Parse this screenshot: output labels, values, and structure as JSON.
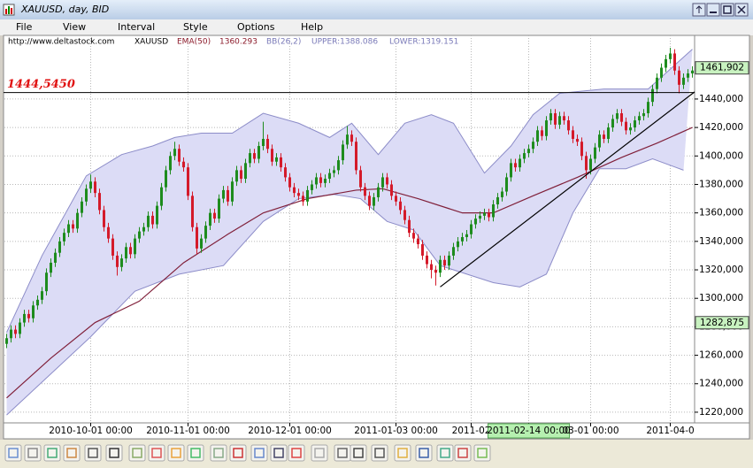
{
  "window": {
    "title": "XAUUSD, day, BID",
    "menu": [
      "File",
      "View",
      "Interval",
      "Style",
      "Options",
      "Help"
    ],
    "header": {
      "source": "http://www.deltastock.com",
      "symbol": "XAUUSD",
      "ema_label": "EMA(50)",
      "ema_value": 1360.293,
      "bb_label": "BB(26,2)",
      "upper": "UPPER:1388.086",
      "lower": "LOWER:1319.151"
    }
  },
  "chart_data": {
    "type": "candlestick",
    "xlim": [
      -0.5,
      155.5
    ],
    "ylim": [
      1212.5,
      1484.7
    ],
    "grid": true,
    "up_color": "#1e8c1e",
    "down_color": "#d41a2a",
    "xticks": [
      {
        "value": 19,
        "label": "2010-10-01 00:00"
      },
      {
        "value": 41,
        "label": "2010-11-01 00:00"
      },
      {
        "value": 64,
        "label": "2010-12-01 00:00"
      },
      {
        "value": 88,
        "label": "2011-01-03 00:00"
      },
      {
        "value": 105,
        "label": "2011-02"
      },
      {
        "value": 118,
        "label": "2011-02-14 00:00"
      },
      {
        "value": 132,
        "label": "03-01 00:00"
      },
      {
        "value": 150,
        "label": "2011-04-0"
      }
    ],
    "highlight_xtick": 5,
    "yticks": [
      {
        "value": 1220,
        "label": "1220,000"
      },
      {
        "value": 1240,
        "label": "1240,000"
      },
      {
        "value": 1260,
        "label": "1260,000"
      },
      {
        "value": 1280,
        "label": "1280,000"
      },
      {
        "value": 1300,
        "label": "1300,000"
      },
      {
        "value": 1320,
        "label": "1320,000"
      },
      {
        "value": 1340,
        "label": "1340,000"
      },
      {
        "value": 1360,
        "label": "1360,000"
      },
      {
        "value": 1380,
        "label": "1380,000"
      },
      {
        "value": 1400,
        "label": "1400,000"
      },
      {
        "value": 1420,
        "label": "1420,000"
      },
      {
        "value": 1440,
        "label": "1440,000"
      }
    ],
    "open": [
      1268,
      1272,
      1278,
      1275,
      1283,
      1289,
      1286,
      1295,
      1299,
      1305,
      1318,
      1325,
      1332,
      1340,
      1346,
      1352,
      1349,
      1360,
      1368,
      1377,
      1382,
      1374,
      1362,
      1350,
      1342,
      1330,
      1322,
      1328,
      1336,
      1331,
      1342,
      1347,
      1350,
      1358,
      1352,
      1365,
      1378,
      1390,
      1400,
      1405,
      1396,
      1392,
      1372,
      1350,
      1335,
      1342,
      1351,
      1360,
      1356,
      1370,
      1376,
      1368,
      1382,
      1390,
      1384,
      1395,
      1402,
      1398,
      1407,
      1412,
      1405,
      1396,
      1399,
      1392,
      1385,
      1378,
      1374,
      1372,
      1368,
      1376,
      1380,
      1385,
      1381,
      1384,
      1388,
      1390,
      1397,
      1408,
      1415,
      1410,
      1390,
      1378,
      1372,
      1365,
      1371,
      1378,
      1385,
      1380,
      1372,
      1368,
      1362,
      1355,
      1346,
      1342,
      1338,
      1330,
      1324,
      1320,
      1318,
      1327,
      1323,
      1330,
      1336,
      1340,
      1343,
      1345,
      1352,
      1356,
      1358,
      1360,
      1357,
      1366,
      1371,
      1375,
      1385,
      1395,
      1392,
      1398,
      1402,
      1405,
      1410,
      1418,
      1414,
      1425,
      1430,
      1422,
      1428,
      1425,
      1418,
      1412,
      1410,
      1400,
      1390,
      1398,
      1406,
      1415,
      1412,
      1420,
      1426,
      1430,
      1424,
      1418,
      1420,
      1425,
      1428,
      1430,
      1438,
      1447,
      1455,
      1462,
      1468,
      1472,
      1460,
      1450,
      1455,
      1458
    ],
    "high": [
      1275,
      1281,
      1281,
      1286,
      1292,
      1292,
      1298,
      1302,
      1308,
      1321,
      1328,
      1335,
      1343,
      1349,
      1355,
      1355,
      1363,
      1371,
      1380,
      1387,
      1385,
      1377,
      1365,
      1353,
      1345,
      1333,
      1331,
      1339,
      1339,
      1345,
      1350,
      1353,
      1361,
      1361,
      1368,
      1381,
      1393,
      1403,
      1410,
      1408,
      1399,
      1395,
      1375,
      1353,
      1345,
      1354,
      1363,
      1363,
      1373,
      1379,
      1379,
      1385,
      1393,
      1393,
      1398,
      1405,
      1405,
      1410,
      1424,
      1415,
      1408,
      1402,
      1402,
      1395,
      1388,
      1381,
      1377,
      1375,
      1379,
      1383,
      1388,
      1388,
      1387,
      1391,
      1393,
      1400,
      1411,
      1421,
      1418,
      1413,
      1393,
      1381,
      1375,
      1374,
      1381,
      1388,
      1388,
      1383,
      1375,
      1371,
      1365,
      1358,
      1349,
      1345,
      1341,
      1333,
      1327,
      1323,
      1330,
      1330,
      1333,
      1339,
      1343,
      1346,
      1348,
      1355,
      1359,
      1361,
      1363,
      1363,
      1369,
      1374,
      1378,
      1388,
      1398,
      1398,
      1401,
      1405,
      1408,
      1413,
      1421,
      1421,
      1428,
      1433,
      1433,
      1431,
      1431,
      1428,
      1421,
      1415,
      1413,
      1403,
      1401,
      1409,
      1418,
      1418,
      1423,
      1429,
      1433,
      1433,
      1427,
      1423,
      1428,
      1431,
      1433,
      1441,
      1450,
      1458,
      1465,
      1471,
      1476,
      1475,
      1463,
      1458,
      1461,
      1463
    ],
    "low": [
      1265,
      1269,
      1272,
      1272,
      1280,
      1283,
      1283,
      1292,
      1296,
      1302,
      1315,
      1322,
      1329,
      1337,
      1343,
      1346,
      1346,
      1357,
      1365,
      1374,
      1371,
      1359,
      1347,
      1339,
      1327,
      1316,
      1319,
      1325,
      1328,
      1328,
      1339,
      1344,
      1347,
      1349,
      1349,
      1362,
      1375,
      1387,
      1397,
      1393,
      1389,
      1369,
      1347,
      1331,
      1332,
      1339,
      1348,
      1353,
      1353,
      1367,
      1365,
      1365,
      1379,
      1381,
      1381,
      1392,
      1395,
      1395,
      1404,
      1402,
      1393,
      1393,
      1389,
      1382,
      1375,
      1371,
      1369,
      1365,
      1365,
      1373,
      1377,
      1378,
      1378,
      1381,
      1385,
      1387,
      1394,
      1405,
      1407,
      1387,
      1375,
      1369,
      1362,
      1362,
      1368,
      1375,
      1377,
      1369,
      1365,
      1359,
      1352,
      1343,
      1339,
      1335,
      1327,
      1321,
      1314,
      1309,
      1315,
      1320,
      1320,
      1327,
      1333,
      1337,
      1340,
      1342,
      1349,
      1353,
      1355,
      1354,
      1354,
      1363,
      1368,
      1372,
      1382,
      1389,
      1389,
      1395,
      1399,
      1402,
      1407,
      1411,
      1411,
      1422,
      1419,
      1419,
      1422,
      1415,
      1409,
      1407,
      1397,
      1384,
      1387,
      1395,
      1403,
      1409,
      1409,
      1417,
      1423,
      1421,
      1415,
      1415,
      1417,
      1422,
      1425,
      1427,
      1435,
      1444,
      1452,
      1459,
      1465,
      1457,
      1444,
      1447,
      1452,
      1455
    ],
    "close": [
      1272,
      1278,
      1275,
      1283,
      1289,
      1286,
      1295,
      1299,
      1305,
      1318,
      1325,
      1332,
      1340,
      1346,
      1352,
      1349,
      1360,
      1368,
      1377,
      1382,
      1374,
      1362,
      1350,
      1342,
      1330,
      1322,
      1328,
      1336,
      1331,
      1342,
      1347,
      1350,
      1358,
      1352,
      1365,
      1378,
      1390,
      1400,
      1405,
      1396,
      1392,
      1372,
      1350,
      1335,
      1342,
      1351,
      1360,
      1356,
      1370,
      1376,
      1368,
      1382,
      1390,
      1384,
      1395,
      1402,
      1398,
      1407,
      1412,
      1405,
      1396,
      1399,
      1392,
      1385,
      1378,
      1374,
      1372,
      1368,
      1376,
      1380,
      1385,
      1381,
      1384,
      1388,
      1390,
      1397,
      1408,
      1415,
      1410,
      1390,
      1378,
      1372,
      1365,
      1371,
      1378,
      1385,
      1380,
      1372,
      1368,
      1362,
      1355,
      1346,
      1342,
      1338,
      1330,
      1324,
      1320,
      1318,
      1327,
      1323,
      1330,
      1336,
      1340,
      1343,
      1345,
      1352,
      1356,
      1358,
      1360,
      1357,
      1366,
      1371,
      1375,
      1385,
      1395,
      1392,
      1398,
      1402,
      1405,
      1410,
      1418,
      1414,
      1425,
      1430,
      1422,
      1428,
      1425,
      1418,
      1412,
      1410,
      1400,
      1390,
      1398,
      1406,
      1415,
      1412,
      1420,
      1426,
      1430,
      1424,
      1418,
      1420,
      1425,
      1428,
      1430,
      1438,
      1447,
      1455,
      1462,
      1468,
      1472,
      1460,
      1450,
      1455,
      1458,
      1460
    ],
    "bands": {
      "fill": "#dcdcf6",
      "color": "#8c8cc8",
      "upper": {
        "x": [
          0,
          8,
          18,
          26,
          33,
          38,
          44,
          51,
          58,
          66,
          73,
          78,
          84,
          90,
          96,
          101,
          108,
          114,
          119,
          125,
          135,
          145,
          155
        ],
        "values": [
          1276,
          1330,
          1386,
          1401,
          1407,
          1413,
          1416,
          1416,
          1430,
          1423,
          1413,
          1423,
          1401,
          1423,
          1429,
          1423,
          1388,
          1407,
          1429,
          1444,
          1447,
          1447,
          1475
        ]
      },
      "lower": {
        "x": [
          0,
          19,
          29,
          39,
          49,
          58,
          66,
          74,
          80,
          86,
          92,
          98,
          110,
          116,
          122,
          128,
          134,
          140,
          146,
          153
        ],
        "values": [
          1218,
          1273,
          1305,
          1317,
          1323,
          1354,
          1370,
          1373,
          1370,
          1354,
          1348,
          1323,
          1311,
          1308,
          1317,
          1360,
          1391,
          1391,
          1398,
          1390
        ]
      }
    },
    "ema": {
      "color": "#80203a",
      "x": [
        0,
        10,
        20,
        30,
        40,
        50,
        58,
        68,
        79,
        85,
        93,
        103,
        110,
        119,
        129,
        139,
        147,
        155
      ],
      "values": [
        1230,
        1258,
        1283,
        1298,
        1325,
        1345,
        1360,
        1370,
        1376,
        1377,
        1370,
        1360,
        1360,
        1372,
        1385,
        1399,
        1409,
        1420
      ]
    },
    "trendline": {
      "color": "#000000",
      "x": [
        98,
        155.5
      ],
      "values": [
        1308,
        1445
      ]
    },
    "hline": {
      "value": 1444.545,
      "label": "1444,5450",
      "color": "#e01010"
    },
    "price_tags": [
      {
        "value": 1461.902,
        "label": "1461,902"
      },
      {
        "value": 1282.875,
        "label": "1282,875"
      }
    ]
  }
}
